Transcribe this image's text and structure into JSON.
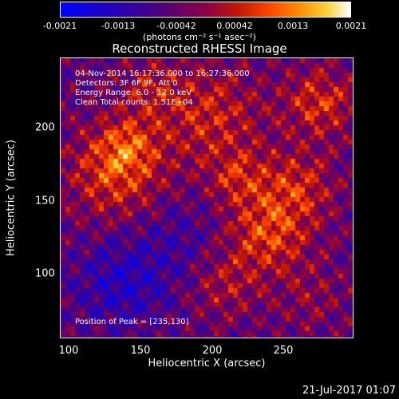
{
  "colorbar": {
    "ticks": [
      "-0.0021",
      "-0.0013",
      "-0.00042",
      "0.00042",
      "0.0013",
      "0.0021"
    ],
    "units": "(photons cm⁻² s⁻¹ asec⁻²)"
  },
  "chart_data": {
    "type": "heatmap",
    "title": "Reconstructed RHESSI Image",
    "xlabel": "Heliocentric X (arcsec)",
    "ylabel": "Heliocentric Y (arcsec)",
    "xlim": [
      94,
      286
    ],
    "ylim": [
      54,
      243
    ],
    "x_ticks": [
      "100",
      "150",
      "200",
      "250"
    ],
    "y_ticks": [
      "100",
      "150",
      "200"
    ],
    "zlim": [
      -0.0021,
      0.0021
    ],
    "peak": [
      235,
      130
    ]
  },
  "info_lines": [
    "04-Nov-2014 16:17:36.000 to 16:27:36.000",
    "Detectors: 3F 6F 9F, Att 0",
    "Energy Range: 6.0 - 12.0 keV",
    "Clean    Total counts: 1.51E+04"
  ],
  "peak_label": "Position of Peak = [235,130]",
  "timestamp": "21-Jul-2017 01:07"
}
